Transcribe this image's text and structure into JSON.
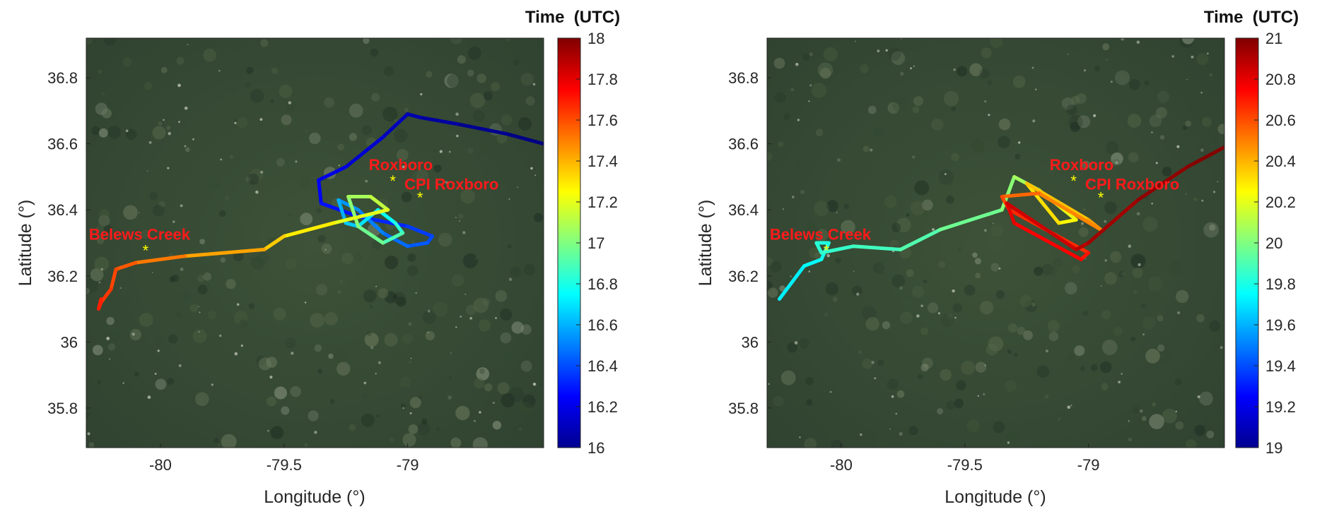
{
  "chart_data": [
    {
      "type": "line",
      "panel": "left",
      "xlabel": "Longitude (°)",
      "ylabel": "Latitude (°)",
      "xlim": [
        -80.3,
        -78.45
      ],
      "ylim": [
        35.68,
        36.92
      ],
      "xticks": [
        -80,
        -79.5,
        -79
      ],
      "xtick_labels": [
        "-80",
        "-79.5",
        "-79"
      ],
      "yticks": [
        35.8,
        36,
        36.2,
        36.4,
        36.6,
        36.8
      ],
      "ytick_labels": [
        "35.8",
        "36",
        "36.2",
        "36.4",
        "36.6",
        "36.8"
      ],
      "background": "satellite imagery",
      "colorbar": {
        "title": "Time  (UTC)",
        "colormap": "jet",
        "range": [
          16,
          18
        ],
        "ticks": [
          16,
          16.2,
          16.4,
          16.6,
          16.8,
          17,
          17.2,
          17.4,
          17.6,
          17.8,
          18
        ],
        "tick_labels": [
          "16",
          "16.2",
          "16.4",
          "16.6",
          "16.8",
          "17",
          "17.2",
          "17.4",
          "17.6",
          "17.8",
          "18"
        ]
      },
      "sites": [
        {
          "name": "Roxboro",
          "lon": -79.06,
          "lat": 36.49
        },
        {
          "name": "CPI Roxboro",
          "lon": -78.95,
          "lat": 36.44
        },
        {
          "name": "Belews Creek",
          "lon": -80.06,
          "lat": 36.28
        }
      ],
      "track": [
        {
          "lon": -78.45,
          "lat": 36.6,
          "t": 16.0
        },
        {
          "lon": -78.6,
          "lat": 36.63,
          "t": 16.02
        },
        {
          "lon": -78.8,
          "lat": 36.66,
          "t": 16.05
        },
        {
          "lon": -78.95,
          "lat": 36.68,
          "t": 16.08
        },
        {
          "lon": -79.0,
          "lat": 36.69,
          "t": 16.1
        },
        {
          "lon": -79.1,
          "lat": 36.62,
          "t": 16.13
        },
        {
          "lon": -79.25,
          "lat": 36.53,
          "t": 16.18
        },
        {
          "lon": -79.36,
          "lat": 36.49,
          "t": 16.22
        },
        {
          "lon": -79.35,
          "lat": 36.42,
          "t": 16.26
        },
        {
          "lon": -79.2,
          "lat": 36.38,
          "t": 16.3
        },
        {
          "lon": -79.0,
          "lat": 36.35,
          "t": 16.35
        },
        {
          "lon": -78.9,
          "lat": 36.32,
          "t": 16.38
        },
        {
          "lon": -78.92,
          "lat": 36.3,
          "t": 16.41
        },
        {
          "lon": -79.0,
          "lat": 36.29,
          "t": 16.44
        },
        {
          "lon": -79.1,
          "lat": 36.33,
          "t": 16.48
        },
        {
          "lon": -79.2,
          "lat": 36.4,
          "t": 16.52
        },
        {
          "lon": -79.28,
          "lat": 36.43,
          "t": 16.57
        },
        {
          "lon": -79.25,
          "lat": 36.36,
          "t": 16.62
        },
        {
          "lon": -79.2,
          "lat": 36.35,
          "t": 16.67
        },
        {
          "lon": -79.12,
          "lat": 36.4,
          "t": 16.73
        },
        {
          "lon": -79.05,
          "lat": 36.36,
          "t": 16.8
        },
        {
          "lon": -79.02,
          "lat": 36.33,
          "t": 16.86
        },
        {
          "lon": -79.1,
          "lat": 36.3,
          "t": 16.93
        },
        {
          "lon": -79.2,
          "lat": 36.35,
          "t": 17.0
        },
        {
          "lon": -79.24,
          "lat": 36.44,
          "t": 17.05
        },
        {
          "lon": -79.15,
          "lat": 36.44,
          "t": 17.1
        },
        {
          "lon": -79.08,
          "lat": 36.4,
          "t": 17.15
        },
        {
          "lon": -79.3,
          "lat": 36.36,
          "t": 17.25
        },
        {
          "lon": -79.5,
          "lat": 36.32,
          "t": 17.32
        },
        {
          "lon": -79.58,
          "lat": 36.28,
          "t": 17.38
        },
        {
          "lon": -79.9,
          "lat": 36.26,
          "t": 17.48
        },
        {
          "lon": -80.1,
          "lat": 36.24,
          "t": 17.55
        },
        {
          "lon": -80.18,
          "lat": 36.22,
          "t": 17.6
        },
        {
          "lon": -80.2,
          "lat": 36.16,
          "t": 17.63
        },
        {
          "lon": -80.24,
          "lat": 36.12,
          "t": 17.66
        },
        {
          "lon": -80.25,
          "lat": 36.1,
          "t": 17.68
        },
        {
          "lon": -80.24,
          "lat": 36.13,
          "t": 17.7
        }
      ]
    },
    {
      "type": "line",
      "panel": "right",
      "xlabel": "Longitude (°)",
      "ylabel": "Latitude (°)",
      "xlim": [
        -80.3,
        -78.45
      ],
      "ylim": [
        35.68,
        36.92
      ],
      "xticks": [
        -80,
        -79.5,
        -79
      ],
      "xtick_labels": [
        "-80",
        "-79.5",
        "-79"
      ],
      "yticks": [
        35.8,
        36,
        36.2,
        36.4,
        36.6,
        36.8
      ],
      "ytick_labels": [
        "35.8",
        "36",
        "36.2",
        "36.4",
        "36.6",
        "36.8"
      ],
      "background": "satellite imagery",
      "colorbar": {
        "title": "Time  (UTC)",
        "colormap": "jet",
        "range": [
          19,
          21
        ],
        "ticks": [
          19,
          19.2,
          19.4,
          19.6,
          19.8,
          20,
          20.2,
          20.4,
          20.6,
          20.8,
          21
        ],
        "tick_labels": [
          "19",
          "19.2",
          "19.4",
          "19.6",
          "19.8",
          "20",
          "20.2",
          "20.4",
          "20.6",
          "20.8",
          "21"
        ]
      },
      "sites": [
        {
          "name": "Roxboro",
          "lon": -79.06,
          "lat": 36.49
        },
        {
          "name": "CPI Roxboro",
          "lon": -78.95,
          "lat": 36.44
        },
        {
          "name": "Belews Creek",
          "lon": -80.06,
          "lat": 36.28
        }
      ],
      "track": [
        {
          "lon": -80.25,
          "lat": 36.13,
          "t": 19.7
        },
        {
          "lon": -80.15,
          "lat": 36.23,
          "t": 19.74
        },
        {
          "lon": -80.08,
          "lat": 36.25,
          "t": 19.77
        },
        {
          "lon": -80.05,
          "lat": 36.3,
          "t": 19.8
        },
        {
          "lon": -80.1,
          "lat": 36.3,
          "t": 19.82
        },
        {
          "lon": -80.08,
          "lat": 36.27,
          "t": 19.84
        },
        {
          "lon": -79.95,
          "lat": 36.29,
          "t": 19.86
        },
        {
          "lon": -79.76,
          "lat": 36.28,
          "t": 19.89
        },
        {
          "lon": -79.6,
          "lat": 36.34,
          "t": 19.93
        },
        {
          "lon": -79.35,
          "lat": 36.4,
          "t": 20.0
        },
        {
          "lon": -79.3,
          "lat": 36.5,
          "t": 20.04
        },
        {
          "lon": -79.2,
          "lat": 36.46,
          "t": 20.1
        },
        {
          "lon": -79.15,
          "lat": 36.43,
          "t": 20.18
        },
        {
          "lon": -79.05,
          "lat": 36.37,
          "t": 20.24
        },
        {
          "lon": -79.12,
          "lat": 36.36,
          "t": 20.28
        },
        {
          "lon": -79.25,
          "lat": 36.48,
          "t": 20.34
        },
        {
          "lon": -79.0,
          "lat": 36.37,
          "t": 20.4
        },
        {
          "lon": -78.95,
          "lat": 36.34,
          "t": 20.46
        },
        {
          "lon": -79.2,
          "lat": 36.45,
          "t": 20.52
        },
        {
          "lon": -79.35,
          "lat": 36.44,
          "t": 20.58
        },
        {
          "lon": -79.32,
          "lat": 36.4,
          "t": 20.64
        },
        {
          "lon": -79.0,
          "lat": 36.27,
          "t": 20.7
        },
        {
          "lon": -79.03,
          "lat": 36.25,
          "t": 20.73
        },
        {
          "lon": -79.3,
          "lat": 36.36,
          "t": 20.78
        },
        {
          "lon": -79.33,
          "lat": 36.42,
          "t": 20.82
        },
        {
          "lon": -79.05,
          "lat": 36.28,
          "t": 20.87
        },
        {
          "lon": -79.0,
          "lat": 36.3,
          "t": 20.91
        },
        {
          "lon": -78.8,
          "lat": 36.43,
          "t": 20.95
        },
        {
          "lon": -78.6,
          "lat": 36.53,
          "t": 20.98
        },
        {
          "lon": -78.45,
          "lat": 36.59,
          "t": 21.0
        }
      ]
    }
  ]
}
